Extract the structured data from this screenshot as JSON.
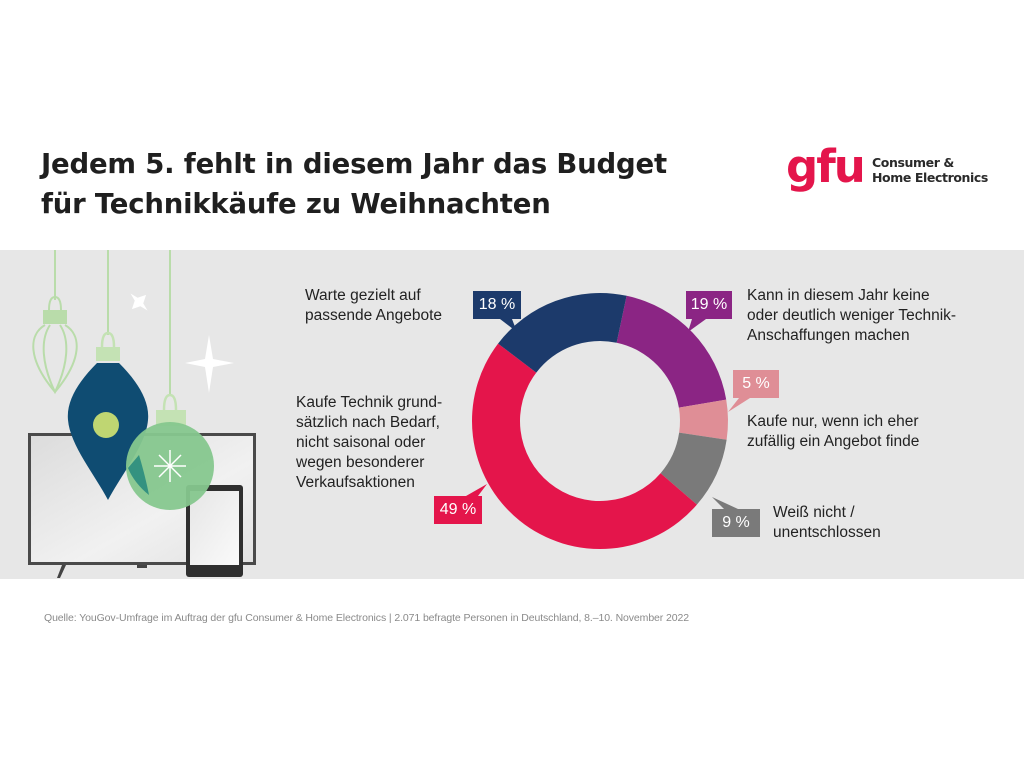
{
  "title": {
    "line1": "Jedem 5. fehlt in diesem Jahr das Budget",
    "line2": "für Technikkäufe zu Weihnachten"
  },
  "logo": {
    "mark": "gfu",
    "line1": "Consumer &",
    "line2": "Home Electronics"
  },
  "colors": {
    "brand": "#e4154b",
    "band_background": "#e7e7e7",
    "navy": "#1c3a6b",
    "purple": "#8b2584",
    "pink": "#df8e96",
    "gray": "#7a7a7a",
    "red": "#e4154b"
  },
  "illustration": {
    "description": "christmas-ornaments-over-tv-and-tablet"
  },
  "chart_data": {
    "type": "pie",
    "variant": "donut",
    "start": "slightly-right-of-top",
    "direction": "clockwise",
    "unit": "%",
    "slices": [
      {
        "name": "purple",
        "value": 19,
        "label": "19 %",
        "color": "#8b2584",
        "text": [
          "Kann in diesem Jahr keine",
          "oder deutlich weniger Technik-",
          "Anschaffungen machen"
        ]
      },
      {
        "name": "pink",
        "value": 5,
        "label": "5 %",
        "color": "#df8e96",
        "text": [
          "Kaufe nur, wenn ich eher",
          "zufällig ein Angebot finde"
        ]
      },
      {
        "name": "gray",
        "value": 9,
        "label": "9 %",
        "color": "#7a7a7a",
        "text": [
          "Weiß nicht /",
          "unentschlossen"
        ]
      },
      {
        "name": "red",
        "value": 49,
        "label": "49 %",
        "color": "#e4154b",
        "text": [
          "Kaufe Technik grund-",
          "sätzlich nach Bedarf,",
          "nicht saisonal oder",
          "wegen besonderer",
          "Verkaufsaktionen"
        ]
      },
      {
        "name": "navy",
        "value": 18,
        "label": "18 %",
        "color": "#1c3a6b",
        "text": [
          "Warte gezielt auf",
          "passende Angebote"
        ]
      }
    ]
  },
  "source": "Quelle: YouGov-Umfrage im Auftrag der gfu Consumer & Home Electronics | 2.071 befragte Personen in Deutschland, 8.–10. November 2022"
}
